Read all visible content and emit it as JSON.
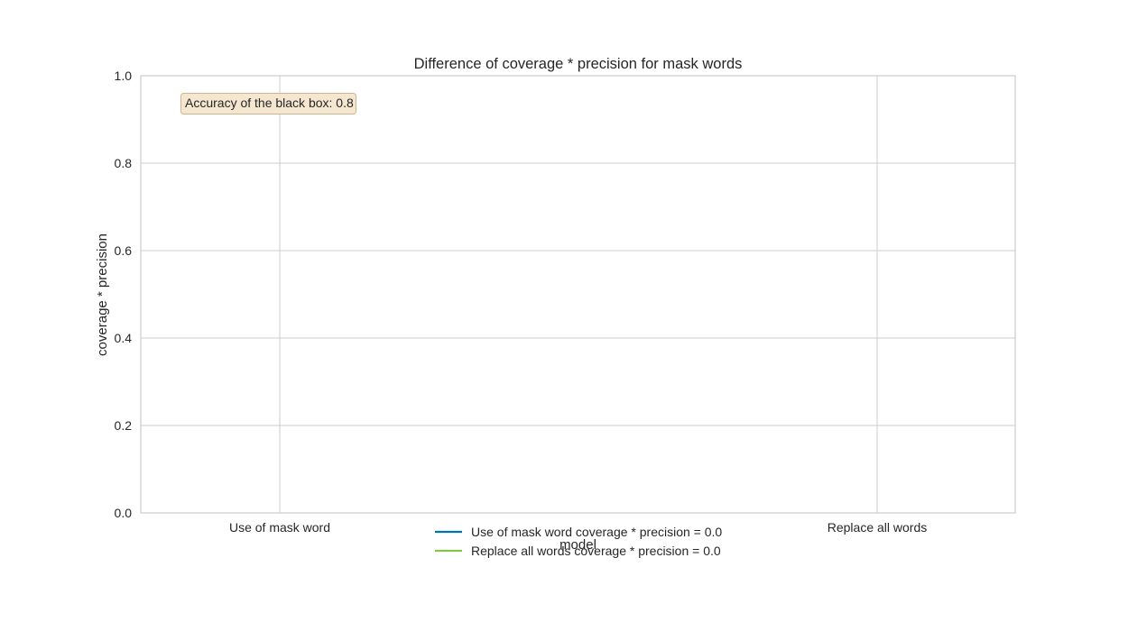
{
  "chart_data": {
    "type": "line",
    "title": "Difference of coverage * precision for mask words",
    "xlabel": "model",
    "ylabel": "coverage * precision",
    "categories": [
      "Use of mask word",
      "Replace all words"
    ],
    "ylim": [
      0.0,
      1.0
    ],
    "yticks": [
      "0.0",
      "0.2",
      "0.4",
      "0.6",
      "0.8",
      "1.0"
    ],
    "grid": true,
    "legend_position": "bottom-center",
    "series": [
      {
        "name": "Use of mask word coverage * precision = 0.0",
        "color": "#0072B2"
      },
      {
        "name": "Replace all words coverage * precision = 0.0",
        "color": "#8BC34A"
      }
    ],
    "annotation": {
      "text": "Accuracy of the black box: 0.8",
      "box_color": "#F5E6CF",
      "border_color": "#D2B48C",
      "position": "top-left"
    }
  }
}
